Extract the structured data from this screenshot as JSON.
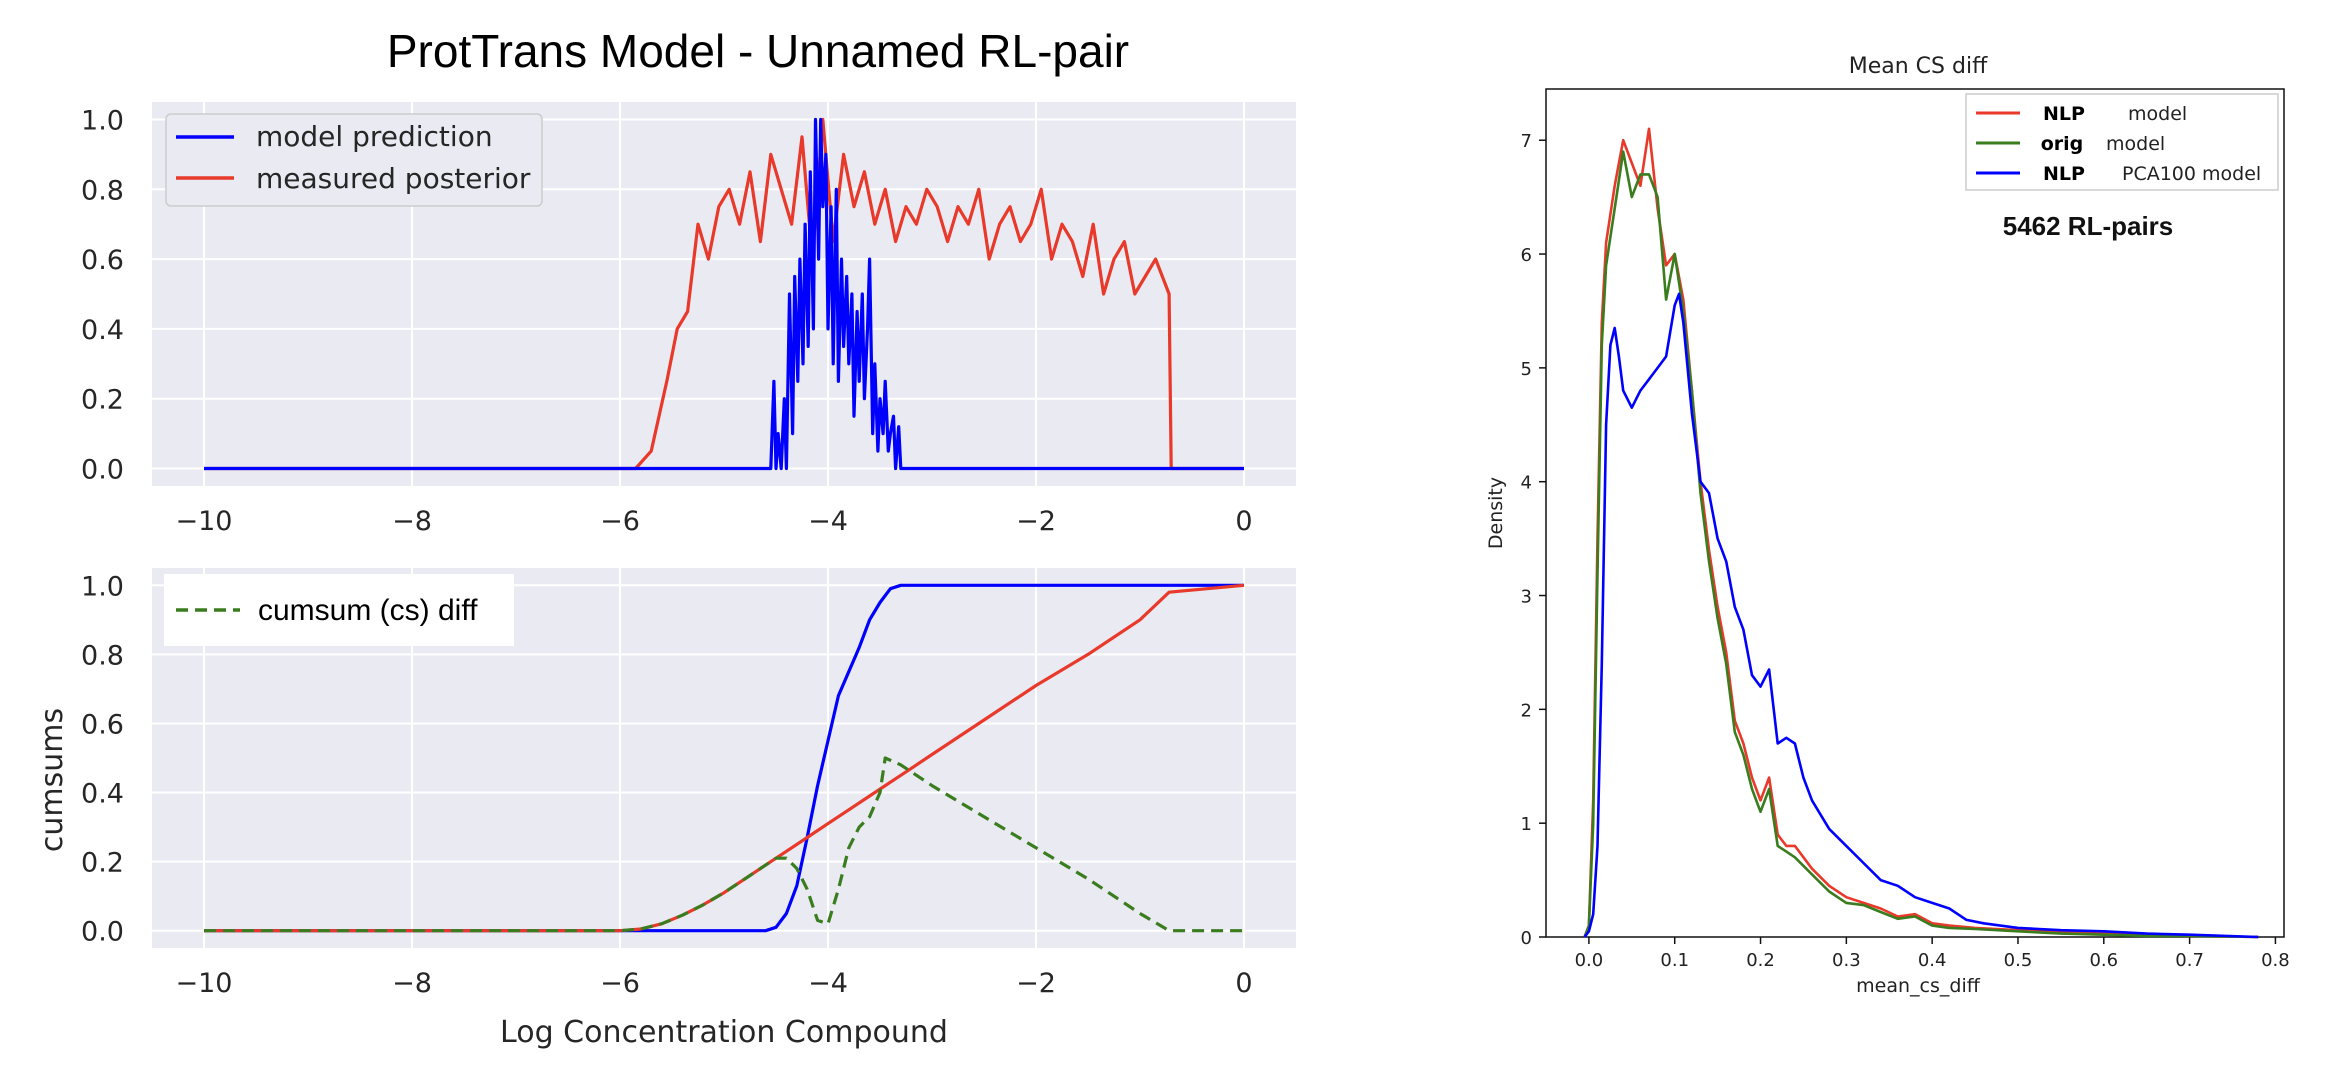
{
  "left_figure": {
    "suptitle": "ProtTrans Model -  Unnamed RL-pair",
    "top_panel": {
      "xlim": [
        -10.5,
        0.5
      ],
      "ylim": [
        -0.05,
        1.05
      ],
      "xticks": [
        -10,
        -8,
        -6,
        -4,
        -2,
        0
      ],
      "xtick_labels": [
        "−10",
        "−8",
        "−6",
        "−4",
        "−2",
        "0"
      ],
      "yticks": [
        0.0,
        0.2,
        0.4,
        0.6,
        0.8,
        1.0
      ],
      "ytick_labels": [
        "0.0",
        "0.2",
        "0.4",
        "0.6",
        "0.8",
        "1.0"
      ],
      "legend": [
        "model prediction",
        "measured posterior"
      ]
    },
    "bottom_panel": {
      "xlim": [
        -10.5,
        0.5
      ],
      "ylim": [
        -0.05,
        1.05
      ],
      "xlabel": "Log Concentration Compound",
      "ylabel": "cumsums",
      "xticks": [
        -10,
        -8,
        -6,
        -4,
        -2,
        0
      ],
      "xtick_labels": [
        "−10",
        "−8",
        "−6",
        "−4",
        "−2",
        "0"
      ],
      "yticks": [
        0.0,
        0.2,
        0.4,
        0.6,
        0.8,
        1.0
      ],
      "ytick_labels": [
        "0.0",
        "0.2",
        "0.4",
        "0.6",
        "0.8",
        "1.0"
      ],
      "legend": [
        "cumsum (cs) diff"
      ]
    }
  },
  "right_figure": {
    "title": "Mean CS diff",
    "xlabel": "mean_cs_diff",
    "ylabel": "Density",
    "annotation": "5462 RL-pairs",
    "xlim": [
      -0.05,
      0.81
    ],
    "ylim": [
      0,
      7.45
    ],
    "xticks": [
      0.0,
      0.1,
      0.2,
      0.3,
      0.4,
      0.5,
      0.6,
      0.7,
      0.8
    ],
    "xtick_labels": [
      "0.0",
      "0.1",
      "0.2",
      "0.3",
      "0.4",
      "0.5",
      "0.6",
      "0.7",
      "0.8"
    ],
    "yticks": [
      0,
      1,
      2,
      3,
      4,
      5,
      6,
      7
    ],
    "ytick_labels": [
      "0",
      "1",
      "2",
      "3",
      "4",
      "5",
      "6",
      "7"
    ],
    "legend": [
      {
        "bold": "NLP",
        "rest": "model"
      },
      {
        "bold": "orig",
        "rest": "model"
      },
      {
        "bold": "NLP",
        "rest": "PCA100 model"
      }
    ]
  },
  "colors": {
    "blue": "#0000ff",
    "red": "#e8392a",
    "green": "#3a7d1e",
    "seaborn_bg": "#eaeaf2",
    "grid": "#ffffff"
  },
  "chart_data": [
    {
      "type": "line",
      "panel": "top",
      "series": [
        {
          "name": "model prediction",
          "x": [
            -10,
            -4.55,
            -4.52,
            -4.5,
            -4.48,
            -4.45,
            -4.42,
            -4.4,
            -4.37,
            -4.34,
            -4.32,
            -4.29,
            -4.27,
            -4.24,
            -4.22,
            -4.19,
            -4.17,
            -4.14,
            -4.12,
            -4.09,
            -4.07,
            -4.05,
            -4.02,
            -4.0,
            -3.97,
            -3.95,
            -3.92,
            -3.9,
            -3.87,
            -3.85,
            -3.82,
            -3.8,
            -3.77,
            -3.75,
            -3.72,
            -3.7,
            -3.67,
            -3.65,
            -3.62,
            -3.6,
            -3.57,
            -3.55,
            -3.52,
            -3.5,
            -3.47,
            -3.45,
            -3.42,
            -3.4,
            -3.37,
            -3.35,
            -3.32,
            -3.3,
            -3.27,
            -3.24,
            -0.7,
            0
          ],
          "y": [
            0,
            0,
            0.25,
            0,
            0.1,
            0,
            0.2,
            0,
            0.5,
            0.1,
            0.55,
            0.25,
            0.6,
            0.3,
            0.7,
            0.35,
            0.85,
            0.4,
            1.0,
            0.6,
            1.0,
            0.75,
            0.9,
            0.4,
            0.75,
            0.3,
            0.8,
            0.25,
            0.6,
            0.35,
            0.55,
            0.3,
            0.5,
            0.15,
            0.45,
            0.25,
            0.5,
            0.2,
            0.4,
            0.6,
            0.1,
            0.3,
            0.05,
            0.2,
            0.1,
            0.25,
            0.05,
            0.1,
            0.15,
            0,
            0.12,
            0,
            0,
            0,
            0,
            0
          ]
        },
        {
          "name": "measured posterior",
          "x": [
            -10,
            -5.85,
            -5.7,
            -5.55,
            -5.45,
            -5.35,
            -5.25,
            -5.15,
            -5.05,
            -4.95,
            -4.85,
            -4.75,
            -4.65,
            -4.55,
            -4.45,
            -4.35,
            -4.25,
            -4.15,
            -4.05,
            -3.95,
            -3.85,
            -3.75,
            -3.65,
            -3.55,
            -3.45,
            -3.35,
            -3.25,
            -3.15,
            -3.05,
            -2.95,
            -2.85,
            -2.75,
            -2.65,
            -2.55,
            -2.45,
            -2.35,
            -2.25,
            -2.15,
            -2.05,
            -1.95,
            -1.85,
            -1.75,
            -1.65,
            -1.55,
            -1.45,
            -1.35,
            -1.25,
            -1.15,
            -1.05,
            -0.95,
            -0.85,
            -0.72,
            -0.7,
            0
          ],
          "y": [
            0,
            0,
            0.05,
            0.25,
            0.4,
            0.45,
            0.7,
            0.6,
            0.75,
            0.8,
            0.7,
            0.85,
            0.65,
            0.9,
            0.8,
            0.7,
            0.95,
            0.6,
            1.0,
            0.65,
            0.9,
            0.75,
            0.85,
            0.7,
            0.8,
            0.65,
            0.75,
            0.7,
            0.8,
            0.75,
            0.65,
            0.75,
            0.7,
            0.8,
            0.6,
            0.7,
            0.75,
            0.65,
            0.7,
            0.8,
            0.6,
            0.7,
            0.65,
            0.55,
            0.7,
            0.5,
            0.6,
            0.65,
            0.5,
            0.55,
            0.6,
            0.5,
            0,
            0
          ]
        }
      ]
    },
    {
      "type": "line",
      "panel": "bottom",
      "series": [
        {
          "name": "model prediction",
          "x": [
            -10,
            -4.6,
            -4.5,
            -4.4,
            -4.3,
            -4.2,
            -4.1,
            -4.0,
            -3.9,
            -3.8,
            -3.7,
            -3.6,
            -3.5,
            -3.4,
            -3.3,
            -3.25,
            0
          ],
          "y": [
            0,
            0,
            0.01,
            0.05,
            0.13,
            0.27,
            0.42,
            0.55,
            0.68,
            0.75,
            0.82,
            0.9,
            0.95,
            0.99,
            1.0,
            1.0,
            1.0
          ]
        },
        {
          "name": "measured posterior",
          "x": [
            -10,
            -6.0,
            -5.8,
            -5.6,
            -5.4,
            -5.2,
            -5.0,
            -4.8,
            -4.6,
            -4.4,
            -4.2,
            -4.0,
            -3.8,
            -3.6,
            -3.4,
            -3.2,
            -3.0,
            -2.5,
            -2.0,
            -1.5,
            -1.0,
            -0.72,
            0
          ],
          "y": [
            0,
            0,
            0.005,
            0.02,
            0.045,
            0.075,
            0.11,
            0.15,
            0.19,
            0.23,
            0.27,
            0.31,
            0.35,
            0.39,
            0.43,
            0.47,
            0.51,
            0.61,
            0.71,
            0.8,
            0.9,
            0.98,
            1.0
          ]
        },
        {
          "name": "cumsum (cs) diff",
          "x": [
            -10,
            -6.0,
            -5.8,
            -5.6,
            -5.4,
            -5.2,
            -5.0,
            -4.8,
            -4.6,
            -4.5,
            -4.4,
            -4.3,
            -4.2,
            -4.1,
            -4.0,
            -3.9,
            -3.8,
            -3.7,
            -3.6,
            -3.5,
            -3.45,
            -3.3,
            -3.0,
            -2.5,
            -2.0,
            -1.5,
            -1.0,
            -0.72,
            0
          ],
          "y": [
            0,
            0,
            0.005,
            0.02,
            0.045,
            0.075,
            0.11,
            0.15,
            0.19,
            0.21,
            0.21,
            0.18,
            0.12,
            0.03,
            0.02,
            0.12,
            0.24,
            0.3,
            0.33,
            0.4,
            0.5,
            0.48,
            0.42,
            0.33,
            0.24,
            0.15,
            0.05,
            0,
            0
          ]
        }
      ]
    },
    {
      "type": "line",
      "panel": "density",
      "series": [
        {
          "name": "NLP model",
          "x": [
            -0.005,
            0.0,
            0.005,
            0.01,
            0.015,
            0.02,
            0.03,
            0.04,
            0.05,
            0.06,
            0.07,
            0.08,
            0.09,
            0.1,
            0.11,
            0.12,
            0.13,
            0.14,
            0.15,
            0.16,
            0.17,
            0.18,
            0.19,
            0.2,
            0.21,
            0.22,
            0.23,
            0.24,
            0.26,
            0.28,
            0.3,
            0.32,
            0.34,
            0.36,
            0.38,
            0.4,
            0.42,
            0.45,
            0.5,
            0.55,
            0.6,
            0.65,
            0.7,
            0.78
          ],
          "y": [
            0,
            0.1,
            1.2,
            3.5,
            5.4,
            6.1,
            6.6,
            7.0,
            6.8,
            6.6,
            7.1,
            6.4,
            5.9,
            6.0,
            5.6,
            4.8,
            4.0,
            3.4,
            2.9,
            2.5,
            1.9,
            1.7,
            1.4,
            1.2,
            1.4,
            0.9,
            0.8,
            0.8,
            0.6,
            0.45,
            0.35,
            0.3,
            0.25,
            0.18,
            0.2,
            0.12,
            0.1,
            0.08,
            0.06,
            0.04,
            0.03,
            0.02,
            0.01,
            0
          ]
        },
        {
          "name": "orig model",
          "x": [
            -0.005,
            0.0,
            0.005,
            0.01,
            0.015,
            0.02,
            0.03,
            0.04,
            0.05,
            0.06,
            0.07,
            0.08,
            0.09,
            0.1,
            0.11,
            0.12,
            0.13,
            0.14,
            0.15,
            0.16,
            0.17,
            0.18,
            0.19,
            0.2,
            0.21,
            0.22,
            0.23,
            0.24,
            0.26,
            0.28,
            0.3,
            0.32,
            0.34,
            0.36,
            0.38,
            0.4,
            0.42,
            0.45,
            0.5,
            0.55,
            0.6,
            0.65,
            0.7,
            0.78
          ],
          "y": [
            0,
            0.1,
            1.0,
            3.2,
            5.2,
            5.9,
            6.4,
            6.9,
            6.5,
            6.7,
            6.7,
            6.5,
            5.6,
            6.0,
            5.5,
            4.8,
            3.9,
            3.3,
            2.8,
            2.4,
            1.8,
            1.6,
            1.3,
            1.1,
            1.3,
            0.8,
            0.75,
            0.7,
            0.55,
            0.4,
            0.3,
            0.28,
            0.22,
            0.16,
            0.18,
            0.1,
            0.08,
            0.07,
            0.05,
            0.03,
            0.02,
            0.01,
            0.01,
            0
          ]
        },
        {
          "name": "NLP PCA100 model",
          "x": [
            -0.005,
            0.0,
            0.005,
            0.01,
            0.015,
            0.02,
            0.025,
            0.03,
            0.035,
            0.04,
            0.05,
            0.06,
            0.07,
            0.08,
            0.09,
            0.1,
            0.105,
            0.11,
            0.12,
            0.13,
            0.14,
            0.15,
            0.16,
            0.17,
            0.18,
            0.19,
            0.2,
            0.21,
            0.22,
            0.23,
            0.24,
            0.25,
            0.26,
            0.28,
            0.3,
            0.32,
            0.34,
            0.36,
            0.38,
            0.4,
            0.42,
            0.44,
            0.46,
            0.5,
            0.55,
            0.6,
            0.65,
            0.7,
            0.78
          ],
          "y": [
            0,
            0.05,
            0.2,
            0.8,
            2.4,
            4.5,
            5.2,
            5.35,
            5.1,
            4.8,
            4.65,
            4.8,
            4.9,
            5.0,
            5.1,
            5.55,
            5.65,
            5.4,
            4.6,
            4.0,
            3.9,
            3.5,
            3.3,
            2.9,
            2.7,
            2.3,
            2.2,
            2.35,
            1.7,
            1.75,
            1.7,
            1.4,
            1.2,
            0.95,
            0.8,
            0.65,
            0.5,
            0.45,
            0.35,
            0.3,
            0.25,
            0.15,
            0.12,
            0.08,
            0.06,
            0.05,
            0.03,
            0.02,
            0
          ]
        }
      ]
    }
  ]
}
